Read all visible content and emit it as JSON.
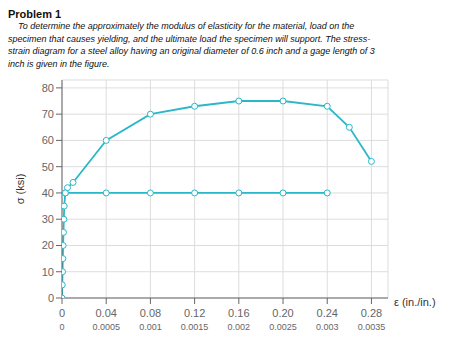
{
  "chart_data": {
    "type": "line",
    "title": "Problem 1",
    "subtitle": "    To determine the approximately the modulus of elasticity for the material, load on the\nspecimen that causes yielding, and the ultimate load the specimen will support. The stress-\nstrain diagram for a steel alloy having an original diameter of 0.6 inch and a gage length of 3\ninch is given in the figure.",
    "x_label": "ε (in./in.)",
    "y_label": "σ (ksi)",
    "xlim": [
      0,
      0.295
    ],
    "ylim": [
      0,
      83
    ],
    "xticks": [
      0,
      0.04,
      0.08,
      0.12,
      0.16,
      {
        "value": 0.2,
        "label": "0.20"
      },
      0.24,
      0.28
    ],
    "x2ticks": [
      0,
      0.0005,
      0.001,
      0.0015,
      0.002,
      0.0025,
      0.003,
      0.0035
    ],
    "yticks": [
      0,
      10,
      20,
      30,
      40,
      50,
      60,
      70,
      80
    ],
    "grid": true,
    "series": [
      {
        "x": [
          0,
          0.00025,
          0.0005,
          0.00075,
          0.001,
          0.00133,
          0.00166,
          0.002,
          0.003,
          0.005,
          0.01,
          0.04,
          0.08,
          0.12,
          0.16,
          0.2,
          0.24,
          0.26,
          0.28
        ],
        "values": [
          0,
          5,
          10,
          15,
          20,
          25,
          30,
          35,
          40,
          42,
          44,
          60,
          70,
          73,
          75,
          75,
          73,
          65,
          52
        ],
        "color": "#2ab8c8",
        "marker": "o"
      },
      {
        "x": [
          0.003,
          0.04,
          0.08,
          0.12,
          0.16,
          0.2,
          0.24
        ],
        "values": [
          40,
          40,
          40,
          40,
          40,
          40,
          40
        ],
        "color": "#2ab8c8",
        "marker": "o"
      }
    ]
  }
}
